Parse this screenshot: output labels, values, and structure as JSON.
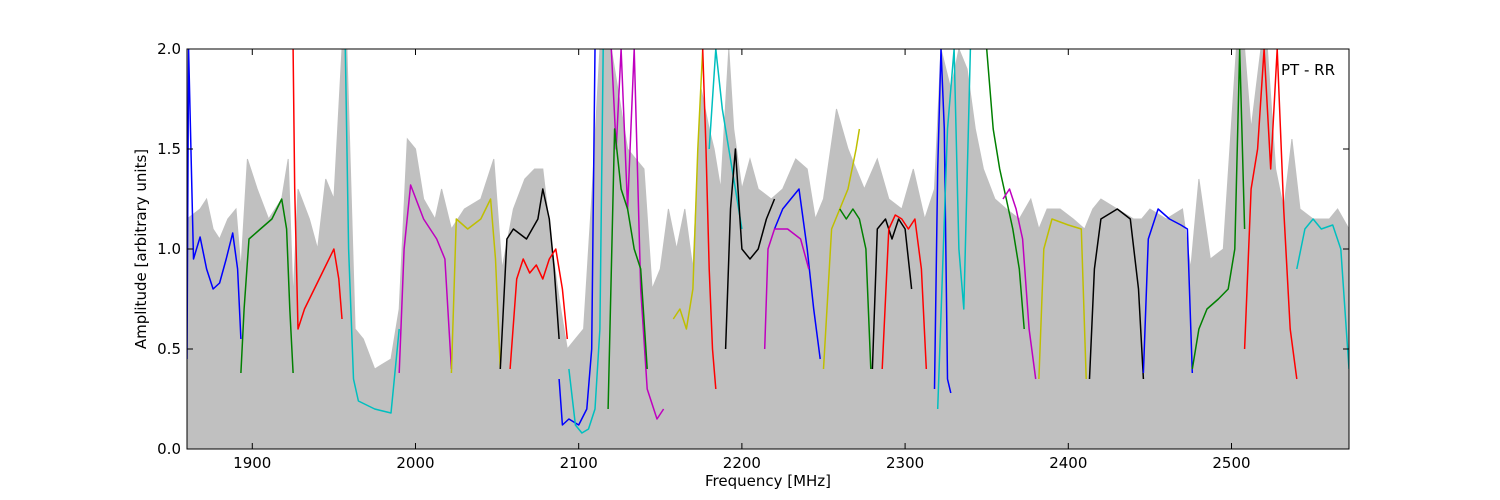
{
  "chart_data": {
    "type": "line",
    "title": "",
    "xlabel": "Frequency [MHz]",
    "ylabel": "Amplitude [arbitrary units]",
    "xlim": [
      1860,
      2572
    ],
    "ylim": [
      0.0,
      2.0
    ],
    "xticks": [
      1900,
      2000,
      2100,
      2200,
      2300,
      2400,
      2500
    ],
    "yticks": [
      0.0,
      0.5,
      1.0,
      1.5,
      2.0
    ],
    "xtick_labels": [
      "1900",
      "2000",
      "2100",
      "2200",
      "2300",
      "2400",
      "2500"
    ],
    "ytick_labels": [
      "0.0",
      "0.5",
      "1.0",
      "1.5",
      "2.0"
    ],
    "annotation": "PT - RR",
    "grid": false,
    "envelope": {
      "color": "#c0c0c0",
      "x": [
        1860,
        1868,
        1872,
        1876,
        1880,
        1885,
        1890,
        1893,
        1897,
        1903,
        1910,
        1918,
        1922,
        1925,
        1928,
        1935,
        1940,
        1945,
        1950,
        1955,
        1958,
        1963,
        1968,
        1975,
        1985,
        1990,
        1995,
        2000,
        2005,
        2012,
        2016,
        2022,
        2030,
        2040,
        2048,
        2053,
        2060,
        2067,
        2073,
        2078,
        2083,
        2088,
        2093,
        2098,
        2103,
        2108,
        2113,
        2120,
        2130,
        2140,
        2145,
        2150,
        2155,
        2160,
        2165,
        2170,
        2175,
        2180,
        2183,
        2187,
        2192,
        2195,
        2200,
        2205,
        2210,
        2218,
        2225,
        2233,
        2240,
        2245,
        2250,
        2258,
        2265,
        2270,
        2275,
        2283,
        2290,
        2298,
        2305,
        2312,
        2318,
        2322,
        2328,
        2333,
        2338,
        2343,
        2348,
        2355,
        2362,
        2370,
        2377,
        2382,
        2387,
        2395,
        2403,
        2410,
        2415,
        2420,
        2430,
        2440,
        2445,
        2450,
        2460,
        2470,
        2475,
        2480,
        2487,
        2495,
        2503,
        2508,
        2512,
        2518,
        2522,
        2527,
        2532,
        2537,
        2542,
        2550,
        2560,
        2565,
        2572
      ],
      "y": [
        1.15,
        1.2,
        1.25,
        1.1,
        1.05,
        1.15,
        1.2,
        0.9,
        1.45,
        1.3,
        1.15,
        1.25,
        1.45,
        0.75,
        1.3,
        1.15,
        1.0,
        1.35,
        1.25,
        2.0,
        2.0,
        0.6,
        0.55,
        0.4,
        0.45,
        0.7,
        1.55,
        1.5,
        1.25,
        1.15,
        1.3,
        1.1,
        1.2,
        1.25,
        1.45,
        0.9,
        1.2,
        1.35,
        1.4,
        1.4,
        1.05,
        0.75,
        0.5,
        0.55,
        0.6,
        1.25,
        2.0,
        2.0,
        1.5,
        1.4,
        0.8,
        0.9,
        1.2,
        1.0,
        1.2,
        0.9,
        1.8,
        1.6,
        1.5,
        1.3,
        2.0,
        1.6,
        1.3,
        1.45,
        1.3,
        1.25,
        1.3,
        1.45,
        1.4,
        1.15,
        1.25,
        1.7,
        1.5,
        1.4,
        1.3,
        1.45,
        1.25,
        1.2,
        1.4,
        1.15,
        1.3,
        2.0,
        1.8,
        2.0,
        1.9,
        1.6,
        1.4,
        1.25,
        1.2,
        1.15,
        1.25,
        1.1,
        1.2,
        1.2,
        1.15,
        1.1,
        1.2,
        1.25,
        1.2,
        1.15,
        1.15,
        1.2,
        1.15,
        1.2,
        0.9,
        1.35,
        0.95,
        1.0,
        2.0,
        2.0,
        1.6,
        2.0,
        2.0,
        1.4,
        1.2,
        1.55,
        1.2,
        1.15,
        1.15,
        1.2,
        1.1
      ]
    },
    "series": [
      {
        "color": "#0000ff",
        "x": [
          1860,
          1861,
          1864,
          1868,
          1872,
          1876,
          1880,
          1884,
          1888,
          1891,
          1893
        ],
        "y": [
          0.45,
          2.0,
          0.95,
          1.06,
          0.9,
          0.8,
          0.83,
          0.95,
          1.08,
          0.9,
          0.55
        ]
      },
      {
        "color": "#008000",
        "x": [
          1893,
          1895,
          1898,
          1905,
          1912,
          1918,
          1921,
          1923,
          1925
        ],
        "y": [
          0.38,
          0.7,
          1.05,
          1.1,
          1.15,
          1.25,
          1.1,
          0.7,
          0.38
        ]
      },
      {
        "color": "#ff0000",
        "x": [
          1925,
          1926,
          1928,
          1932,
          1938,
          1944,
          1950,
          1953,
          1955
        ],
        "y": [
          2.0,
          1.3,
          0.6,
          0.7,
          0.8,
          0.9,
          1.0,
          0.85,
          0.65
        ]
      },
      {
        "color": "#00bfbf",
        "x": [
          1957,
          1959,
          1962,
          1965,
          1975,
          1985,
          1990
        ],
        "y": [
          2.0,
          1.0,
          0.35,
          0.24,
          0.2,
          0.18,
          0.6
        ]
      },
      {
        "color": "#bf00bf",
        "x": [
          1990,
          1993,
          1997,
          2005,
          2013,
          2018,
          2022
        ],
        "y": [
          0.38,
          1.0,
          1.32,
          1.15,
          1.05,
          0.95,
          0.4
        ]
      },
      {
        "color": "#bfbf00",
        "x": [
          2022,
          2025,
          2032,
          2040,
          2046,
          2049,
          2052
        ],
        "y": [
          0.38,
          1.15,
          1.1,
          1.15,
          1.25,
          0.95,
          0.4
        ]
      },
      {
        "color": "#000000",
        "x": [
          2052,
          2056,
          2060,
          2068,
          2075,
          2078,
          2082,
          2085,
          2088
        ],
        "y": [
          0.4,
          1.05,
          1.1,
          1.05,
          1.15,
          1.3,
          1.15,
          0.9,
          0.55
        ]
      },
      {
        "color": "#ff0000",
        "x": [
          2058,
          2062,
          2066,
          2070,
          2074,
          2078,
          2082,
          2086,
          2090,
          2093
        ],
        "y": [
          0.4,
          0.85,
          0.95,
          0.88,
          0.92,
          0.85,
          0.95,
          1.0,
          0.8,
          0.55
        ]
      },
      {
        "color": "#0000ff",
        "x": [
          2088,
          2090,
          2094,
          2100,
          2105,
          2108,
          2110
        ],
        "y": [
          0.35,
          0.12,
          0.15,
          0.12,
          0.2,
          0.5,
          2.0
        ]
      },
      {
        "color": "#00bfbf",
        "x": [
          2094,
          2098,
          2102,
          2106,
          2110,
          2113,
          2115
        ],
        "y": [
          0.4,
          0.12,
          0.08,
          0.1,
          0.2,
          0.6,
          2.0
        ]
      },
      {
        "color": "#bf00bf",
        "x": [
          2120,
          2123,
          2126,
          2130,
          2134,
          2138,
          2142,
          2148,
          2152
        ],
        "y": [
          2.0,
          1.5,
          2.0,
          1.2,
          2.0,
          0.8,
          0.3,
          0.15,
          0.2
        ]
      },
      {
        "color": "#008000",
        "x": [
          2118,
          2122,
          2126,
          2130,
          2134,
          2138,
          2142
        ],
        "y": [
          0.2,
          1.6,
          1.3,
          1.2,
          1.0,
          0.9,
          0.4
        ]
      },
      {
        "color": "#bfbf00",
        "x": [
          2158,
          2162,
          2166,
          2170,
          2173,
          2176
        ],
        "y": [
          0.65,
          0.7,
          0.6,
          0.8,
          1.5,
          2.0
        ]
      },
      {
        "color": "#ff0000",
        "x": [
          2176,
          2178,
          2180,
          2182,
          2184
        ],
        "y": [
          2.0,
          1.5,
          0.9,
          0.5,
          0.3
        ]
      },
      {
        "color": "#00bfbf",
        "x": [
          2180,
          2184,
          2188,
          2192,
          2196,
          2200
        ],
        "y": [
          1.5,
          2.0,
          1.7,
          1.5,
          1.3,
          1.1
        ]
      },
      {
        "color": "#000000",
        "x": [
          2190,
          2193,
          2196,
          2200,
          2205,
          2210,
          2215,
          2220
        ],
        "y": [
          0.5,
          1.2,
          1.5,
          1.0,
          0.95,
          1.0,
          1.15,
          1.25
        ]
      },
      {
        "color": "#0000ff",
        "x": [
          2220,
          2225,
          2230,
          2235,
          2240,
          2244,
          2248
        ],
        "y": [
          1.1,
          1.2,
          1.25,
          1.3,
          1.0,
          0.7,
          0.45
        ]
      },
      {
        "color": "#bf00bf",
        "x": [
          2214,
          2216,
          2220,
          2228,
          2236,
          2241
        ],
        "y": [
          0.5,
          1.0,
          1.1,
          1.1,
          1.05,
          0.9
        ]
      },
      {
        "color": "#bfbf00",
        "x": [
          2250,
          2255,
          2260,
          2265,
          2270,
          2272
        ],
        "y": [
          0.4,
          1.1,
          1.2,
          1.3,
          1.5,
          1.6
        ]
      },
      {
        "color": "#008000",
        "x": [
          2260,
          2264,
          2268,
          2272,
          2276,
          2279
        ],
        "y": [
          1.2,
          1.15,
          1.2,
          1.15,
          1.0,
          0.4
        ]
      },
      {
        "color": "#000000",
        "x": [
          2280,
          2283,
          2288,
          2292,
          2296,
          2300,
          2304
        ],
        "y": [
          0.4,
          1.1,
          1.15,
          1.05,
          1.15,
          1.1,
          0.8
        ]
      },
      {
        "color": "#ff0000",
        "x": [
          2286,
          2290,
          2294,
          2298,
          2302,
          2306,
          2310,
          2313
        ],
        "y": [
          0.4,
          1.1,
          1.17,
          1.15,
          1.1,
          1.15,
          0.9,
          0.4
        ]
      },
      {
        "color": "#0000ff",
        "x": [
          2318,
          2320,
          2322,
          2324,
          2326,
          2328
        ],
        "y": [
          0.3,
          1.4,
          2.0,
          1.6,
          0.35,
          0.28
        ]
      },
      {
        "color": "#00bfbf",
        "x": [
          2320,
          2323,
          2326,
          2330,
          2333,
          2336,
          2340
        ],
        "y": [
          0.2,
          0.9,
          1.6,
          2.0,
          1.0,
          0.7,
          2.0
        ]
      },
      {
        "color": "#008000",
        "x": [
          2350,
          2354,
          2358,
          2362,
          2366,
          2370,
          2373
        ],
        "y": [
          2.0,
          1.6,
          1.4,
          1.25,
          1.1,
          0.9,
          0.6
        ]
      },
      {
        "color": "#bf00bf",
        "x": [
          2360,
          2364,
          2368,
          2372,
          2376,
          2380
        ],
        "y": [
          1.25,
          1.3,
          1.2,
          1.05,
          0.6,
          0.35
        ]
      },
      {
        "color": "#bfbf00",
        "x": [
          2382,
          2385,
          2390,
          2400,
          2408,
          2411
        ],
        "y": [
          0.35,
          1.0,
          1.15,
          1.12,
          1.1,
          0.35
        ]
      },
      {
        "color": "#000000",
        "x": [
          2413,
          2416,
          2420,
          2430,
          2438,
          2443,
          2446
        ],
        "y": [
          0.35,
          0.9,
          1.15,
          1.2,
          1.15,
          0.8,
          0.35
        ]
      },
      {
        "color": "#0000ff",
        "x": [
          2446,
          2449,
          2455,
          2462,
          2469,
          2473,
          2476
        ],
        "y": [
          0.38,
          1.05,
          1.2,
          1.15,
          1.12,
          1.1,
          0.38
        ]
      },
      {
        "color": "#008000",
        "x": [
          2476,
          2480,
          2485,
          2492,
          2498,
          2502,
          2505,
          2508
        ],
        "y": [
          0.4,
          0.6,
          0.7,
          0.75,
          0.8,
          1.0,
          2.0,
          1.1
        ]
      },
      {
        "color": "#ff0000",
        "x": [
          2508,
          2512,
          2516,
          2520,
          2524,
          2528,
          2532,
          2536,
          2540
        ],
        "y": [
          0.5,
          1.3,
          1.5,
          2.0,
          1.4,
          2.0,
          1.2,
          0.6,
          0.35
        ]
      },
      {
        "color": "#00bfbf",
        "x": [
          2540,
          2545,
          2550,
          2555,
          2562,
          2567,
          2572
        ],
        "y": [
          0.9,
          1.1,
          1.15,
          1.1,
          1.12,
          1.0,
          0.4
        ]
      }
    ]
  }
}
